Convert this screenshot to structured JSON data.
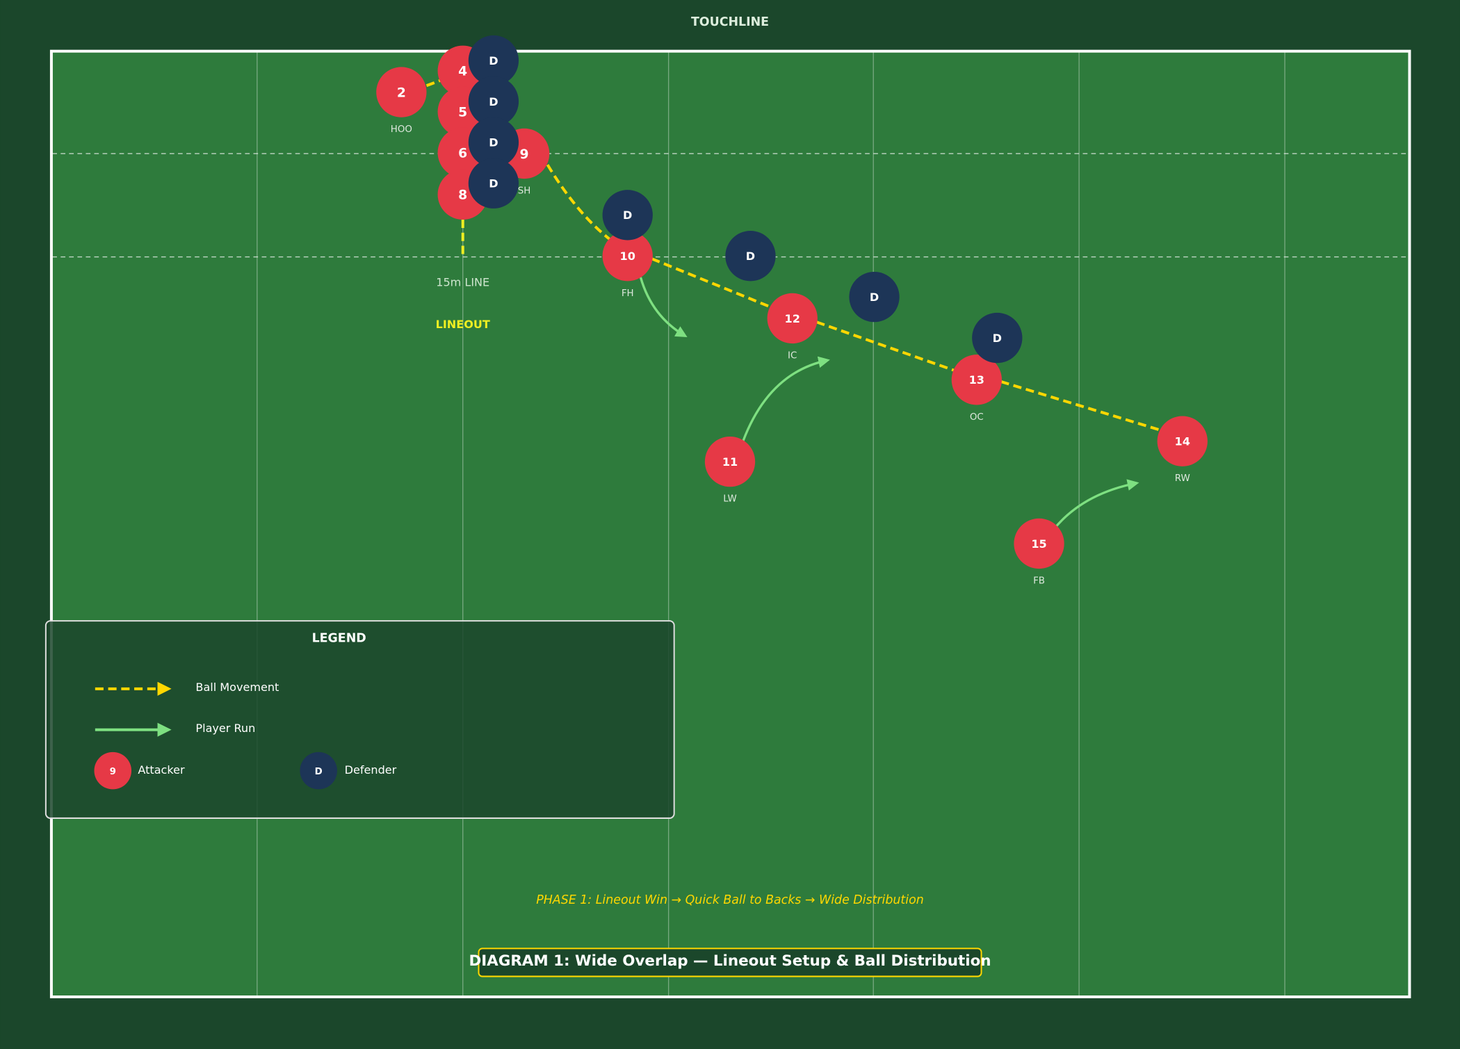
{
  "header": {
    "touchline": "TOUCHLINE"
  },
  "field": {
    "line_label": "15m LINE",
    "lineout_label": "LINEOUT"
  },
  "attackers": [
    {
      "number": "2",
      "position": "HOO"
    },
    {
      "number": "4"
    },
    {
      "number": "5"
    },
    {
      "number": "6"
    },
    {
      "number": "8"
    },
    {
      "number": "9",
      "position": "SH"
    },
    {
      "number": "10",
      "position": "FH"
    },
    {
      "number": "12",
      "position": "IC"
    },
    {
      "number": "11",
      "position": "LW"
    },
    {
      "number": "13",
      "position": "OC"
    },
    {
      "number": "14",
      "position": "RW"
    },
    {
      "number": "15",
      "position": "FB"
    }
  ],
  "defenders": [
    "D",
    "D",
    "D",
    "D",
    "D",
    "D",
    "D",
    "D"
  ],
  "legend": {
    "title": "LEGEND",
    "ball": "Ball Movement",
    "run": "Player Run",
    "attacker_icon": "9",
    "attacker": "Attacker",
    "defender_icon": "D",
    "defender": "Defender"
  },
  "caption": "PHASE 1: Lineout Win → Quick Ball to Backs → Wide Distribution",
  "title": "DIAGRAM 1: Wide Overlap — Lineout Setup & Ball Distribution"
}
